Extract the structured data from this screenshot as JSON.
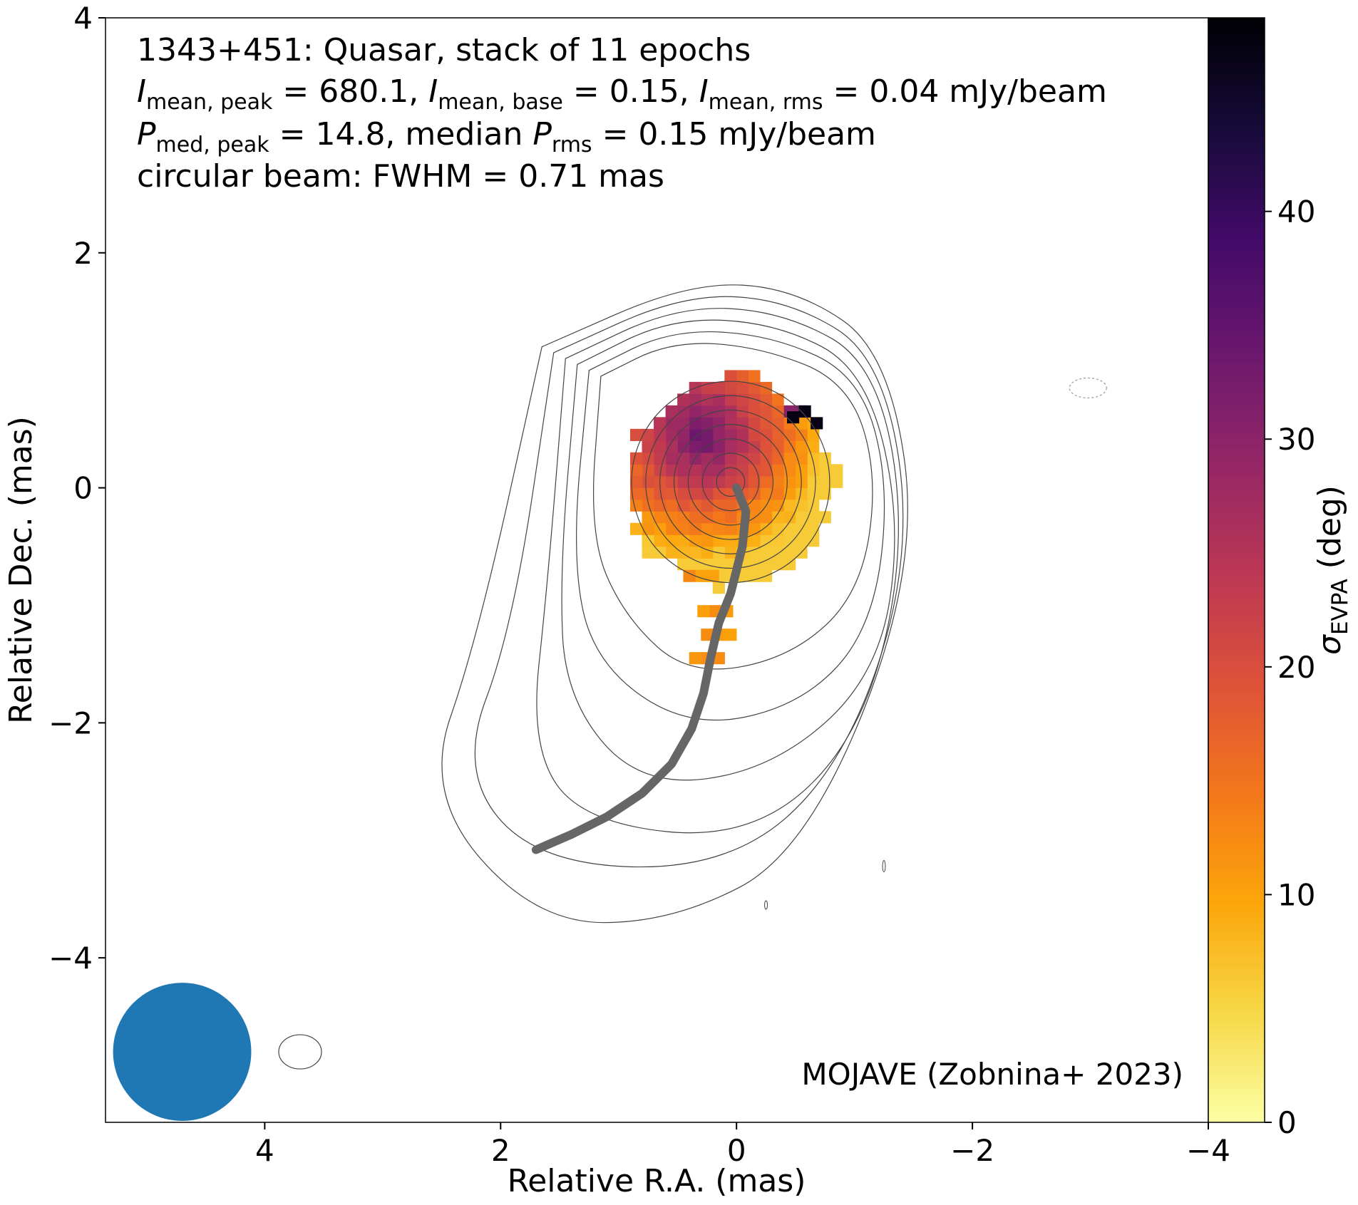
{
  "chart_data": {
    "type": "heatmap",
    "annotation": {
      "line1": "1343+451: Quasar, stack of 11 epochs",
      "line2": {
        "I_peak_label": "I",
        "I_peak_sub": "mean, peak",
        "I_peak_value": "= 680.1,",
        "I_base_label": "I",
        "I_base_sub": "mean, base",
        "I_base_value": "= 0.15,",
        "I_rms_label": "I",
        "I_rms_sub": "mean, rms",
        "I_rms_value": "= 0.04 mJy/beam"
      },
      "line3": {
        "P_peak_label": "P",
        "P_peak_sub": "med, peak",
        "P_peak_value": "= 14.8, median",
        "P_rms_label": "P",
        "P_rms_sub": "rms",
        "P_rms_value": "= 0.15 mJy/beam"
      },
      "line4": "circular beam: FWHM = 0.71 mas"
    },
    "credit": "MOJAVE (Zobnina+ 2023)",
    "xlabel": "Relative R.A. (mas)",
    "ylabel": "Relative Dec. (mas)",
    "xlim": [
      5.35,
      -4.0
    ],
    "ylim": [
      -5.4,
      4.0
    ],
    "x_ticks": [
      4,
      2,
      0,
      -2,
      -4
    ],
    "x_tick_labels": [
      "4",
      "2",
      "0",
      "−2",
      "−4"
    ],
    "y_ticks": [
      4,
      2,
      0,
      -2,
      -4
    ],
    "y_tick_labels": [
      "4",
      "2",
      "0",
      "−2",
      "−4"
    ],
    "colorbar": {
      "label_symbol": "σ",
      "label_sub": "EVPA",
      "label_unit": "(deg)",
      "range": [
        0,
        48.5
      ],
      "ticks": [
        0,
        10,
        20,
        30,
        40
      ],
      "tick_labels": [
        "0",
        "10",
        "20",
        "30",
        "40"
      ],
      "colormap": "inferno_r",
      "stops": [
        "#fcffa4",
        "#f6d746",
        "#fca50a",
        "#f3761b",
        "#dd513a",
        "#ba3655",
        "#932667",
        "#6a176e",
        "#420a68",
        "#160b39",
        "#000004"
      ]
    },
    "pixel_size_mas": 0.1,
    "pol_region": {
      "center": [
        0.05,
        0.05
      ],
      "radius": 0.88,
      "bright_center": [
        0.3,
        0.45
      ],
      "max_sigma_deg": 47,
      "extension_lower": [
        [
          0.3,
          -0.75
        ],
        [
          0.18,
          -1.05
        ],
        [
          0.15,
          -1.25
        ],
        [
          0.25,
          -1.45
        ]
      ]
    },
    "ridge_line": {
      "color": "#666666",
      "points": [
        [
          0.0,
          0.0
        ],
        [
          -0.08,
          -0.2
        ],
        [
          -0.05,
          -0.5
        ],
        [
          0.05,
          -0.9
        ],
        [
          0.15,
          -1.15
        ],
        [
          0.22,
          -1.45
        ],
        [
          0.28,
          -1.75
        ],
        [
          0.38,
          -2.05
        ],
        [
          0.55,
          -2.35
        ],
        [
          0.8,
          -2.6
        ],
        [
          1.1,
          -2.8
        ],
        [
          1.4,
          -2.95
        ],
        [
          1.7,
          -3.08
        ]
      ]
    },
    "contours": {
      "levels": 11,
      "line_color": "#444444"
    },
    "beam": {
      "center": [
        4.7,
        -4.8
      ],
      "fwhm": 0.71,
      "color": "#1f77b4"
    }
  }
}
